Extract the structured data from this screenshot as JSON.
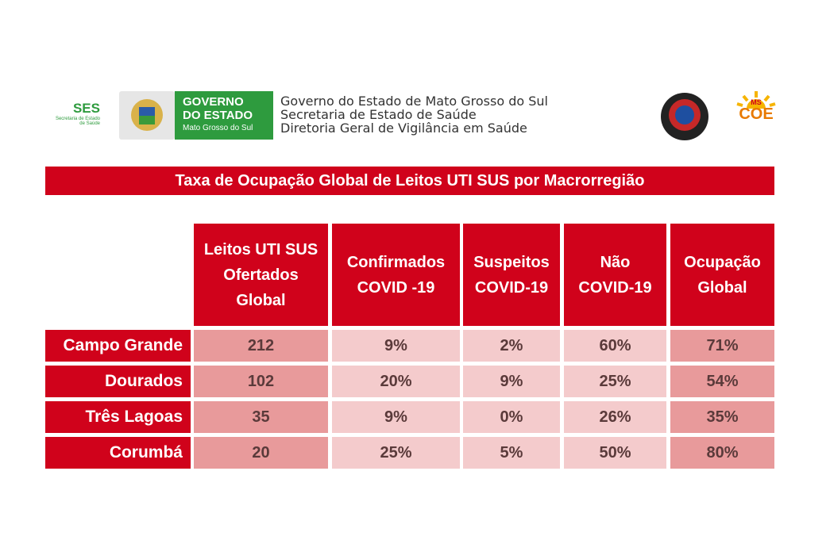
{
  "header": {
    "ses": {
      "title": "SES",
      "subtitle": [
        "Secretaria de Estado",
        "de Saúde"
      ]
    },
    "governo": [
      "GOVERNO",
      "DO ESTADO",
      "Mato Grosso do Sul"
    ],
    "lines": [
      "Governo do Estado de Mato Grosso do Sul",
      "Secretaria de Estado de Saúde",
      "Diretoria Geral de Vigilância em Saúde"
    ],
    "coe": {
      "state": "MS",
      "name": "COE"
    }
  },
  "title": "Taxa de Ocupação Global de Leitos UTI SUS por Macrorregião",
  "table": {
    "columns": [
      [
        "Leitos UTI SUS",
        "Ofertados",
        "Global"
      ],
      [
        "Confirmados",
        "COVID -19"
      ],
      [
        "Suspeitos",
        "COVID-19"
      ],
      [
        "Não",
        "COVID-19"
      ],
      [
        "Ocupação",
        "Global"
      ]
    ],
    "rows": [
      {
        "label": "Campo Grande",
        "cells": [
          "212",
          "9%",
          "2%",
          "60%",
          "71%"
        ]
      },
      {
        "label": "Dourados",
        "cells": [
          "102",
          "20%",
          "9%",
          "25%",
          "54%"
        ]
      },
      {
        "label": "Três Lagoas",
        "cells": [
          "35",
          "9%",
          "0%",
          "26%",
          "35%"
        ]
      },
      {
        "label": "Corumbá",
        "cells": [
          "20",
          "25%",
          "5%",
          "50%",
          "80%"
        ]
      }
    ]
  }
}
